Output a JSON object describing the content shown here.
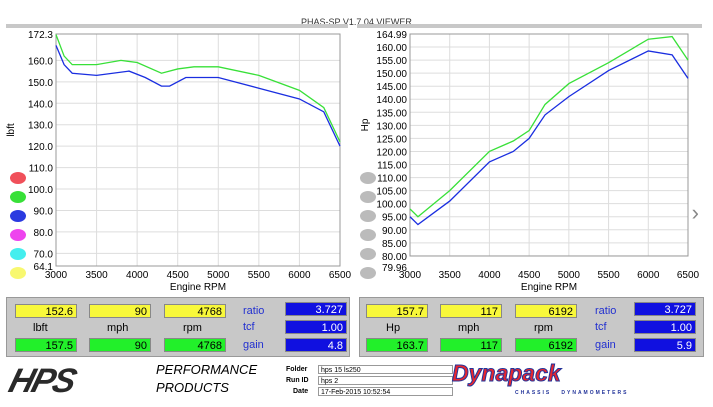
{
  "app_title": "PHAS-SP V1.7.04  VIEWER",
  "colors": {
    "run1": "#1a2ee0",
    "run2": "#38e038"
  },
  "left_chart": {
    "ylabel": "lbft",
    "xlabel": "Engine RPM",
    "yticks": [
      "172.3",
      "160.0",
      "150.0",
      "140.0",
      "130.0",
      "120.0",
      "110.0",
      "100.0",
      "90.0",
      "80.0",
      "70.0",
      "64.1"
    ],
    "xticks": [
      "3000",
      "3500",
      "4000",
      "4500",
      "5000",
      "5500",
      "6000",
      "6500"
    ]
  },
  "right_chart": {
    "ylabel": "Hp",
    "xlabel": "Engine RPM",
    "yticks": [
      "164.99",
      "160.00",
      "155.00",
      "150.00",
      "145.00",
      "140.00",
      "135.00",
      "130.00",
      "125.00",
      "120.00",
      "115.00",
      "110.00",
      "105.00",
      "100.00",
      "95.00",
      "90.00",
      "85.00",
      "80.00",
      "79.96"
    ],
    "xticks": [
      "3000",
      "3500",
      "4000",
      "4500",
      "5000",
      "5500",
      "6000",
      "6500"
    ]
  },
  "chart_data": [
    {
      "type": "line",
      "ylabel": "lbft",
      "xlabel": "Engine RPM",
      "xlim": [
        3000,
        6500
      ],
      "ylim": [
        64.1,
        172.3
      ],
      "grid": true,
      "series": [
        {
          "color": "#38e038",
          "x": [
            3000,
            3100,
            3200,
            3500,
            3800,
            4000,
            4300,
            4500,
            4700,
            5000,
            5500,
            6000,
            6300,
            6500
          ],
          "y": [
            172,
            162,
            158,
            158,
            160,
            159,
            154,
            156,
            157,
            157,
            153,
            146,
            138,
            122
          ]
        },
        {
          "color": "#1a2ee0",
          "x": [
            3000,
            3100,
            3200,
            3500,
            3900,
            4100,
            4300,
            4400,
            4600,
            5000,
            5500,
            6000,
            6300,
            6500
          ],
          "y": [
            167,
            158,
            154,
            153,
            155,
            152,
            148,
            148,
            152,
            152,
            147,
            142,
            136,
            120
          ]
        }
      ]
    },
    {
      "type": "line",
      "ylabel": "Hp",
      "xlabel": "Engine RPM",
      "xlim": [
        3000,
        6500
      ],
      "ylim": [
        79.96,
        164.99
      ],
      "grid": true,
      "series": [
        {
          "color": "#38e038",
          "x": [
            3000,
            3100,
            3500,
            4000,
            4300,
            4500,
            4700,
            5000,
            5500,
            6000,
            6300,
            6500
          ],
          "y": [
            98,
            95,
            105,
            120,
            124,
            128,
            138,
            146,
            154,
            163,
            164,
            155
          ]
        },
        {
          "color": "#1a2ee0",
          "x": [
            3000,
            3100,
            3500,
            4000,
            4300,
            4500,
            4700,
            5000,
            5500,
            6000,
            6300,
            6500
          ],
          "y": [
            95,
            92,
            101,
            116,
            120,
            125,
            134,
            141,
            151,
            158.5,
            157,
            148
          ]
        }
      ]
    }
  ],
  "left_panel": {
    "v1": "152.6",
    "mph1": "90",
    "rpm1": "4768",
    "unit": "lbft",
    "mph_label": "mph",
    "rpm_label": "rpm",
    "v2": "157.5",
    "mph2": "90",
    "rpm2": "4768",
    "ratio_label": "ratio",
    "ratio": "3.727",
    "tcf_label": "tcf",
    "tcf": "1.00",
    "gain_label": "gain",
    "gain": "4.8"
  },
  "right_panel": {
    "v1": "157.7",
    "mph1": "117",
    "rpm1": "6192",
    "unit": "Hp",
    "mph_label": "mph",
    "rpm_label": "rpm",
    "v2": "163.7",
    "mph2": "117",
    "rpm2": "6192",
    "ratio_label": "ratio",
    "ratio": "3.727",
    "tcf_label": "tcf",
    "tcf": "1.00",
    "gain_label": "gain",
    "gain": "5.9"
  },
  "footer": {
    "logo": "HPS",
    "logo_sub1": "PERFORMANCE",
    "logo_sub2": "PRODUCTS",
    "folder_label": "Folder",
    "folder": "hps 15 ls250",
    "runid_label": "Run ID",
    "runid": "hps 2",
    "date_label": "Date",
    "date": "17-Feb-2015  10:52:54",
    "dyna": "Dynapack",
    "dyna_sub": "CHASSIS   DYNAMOMETERS"
  }
}
